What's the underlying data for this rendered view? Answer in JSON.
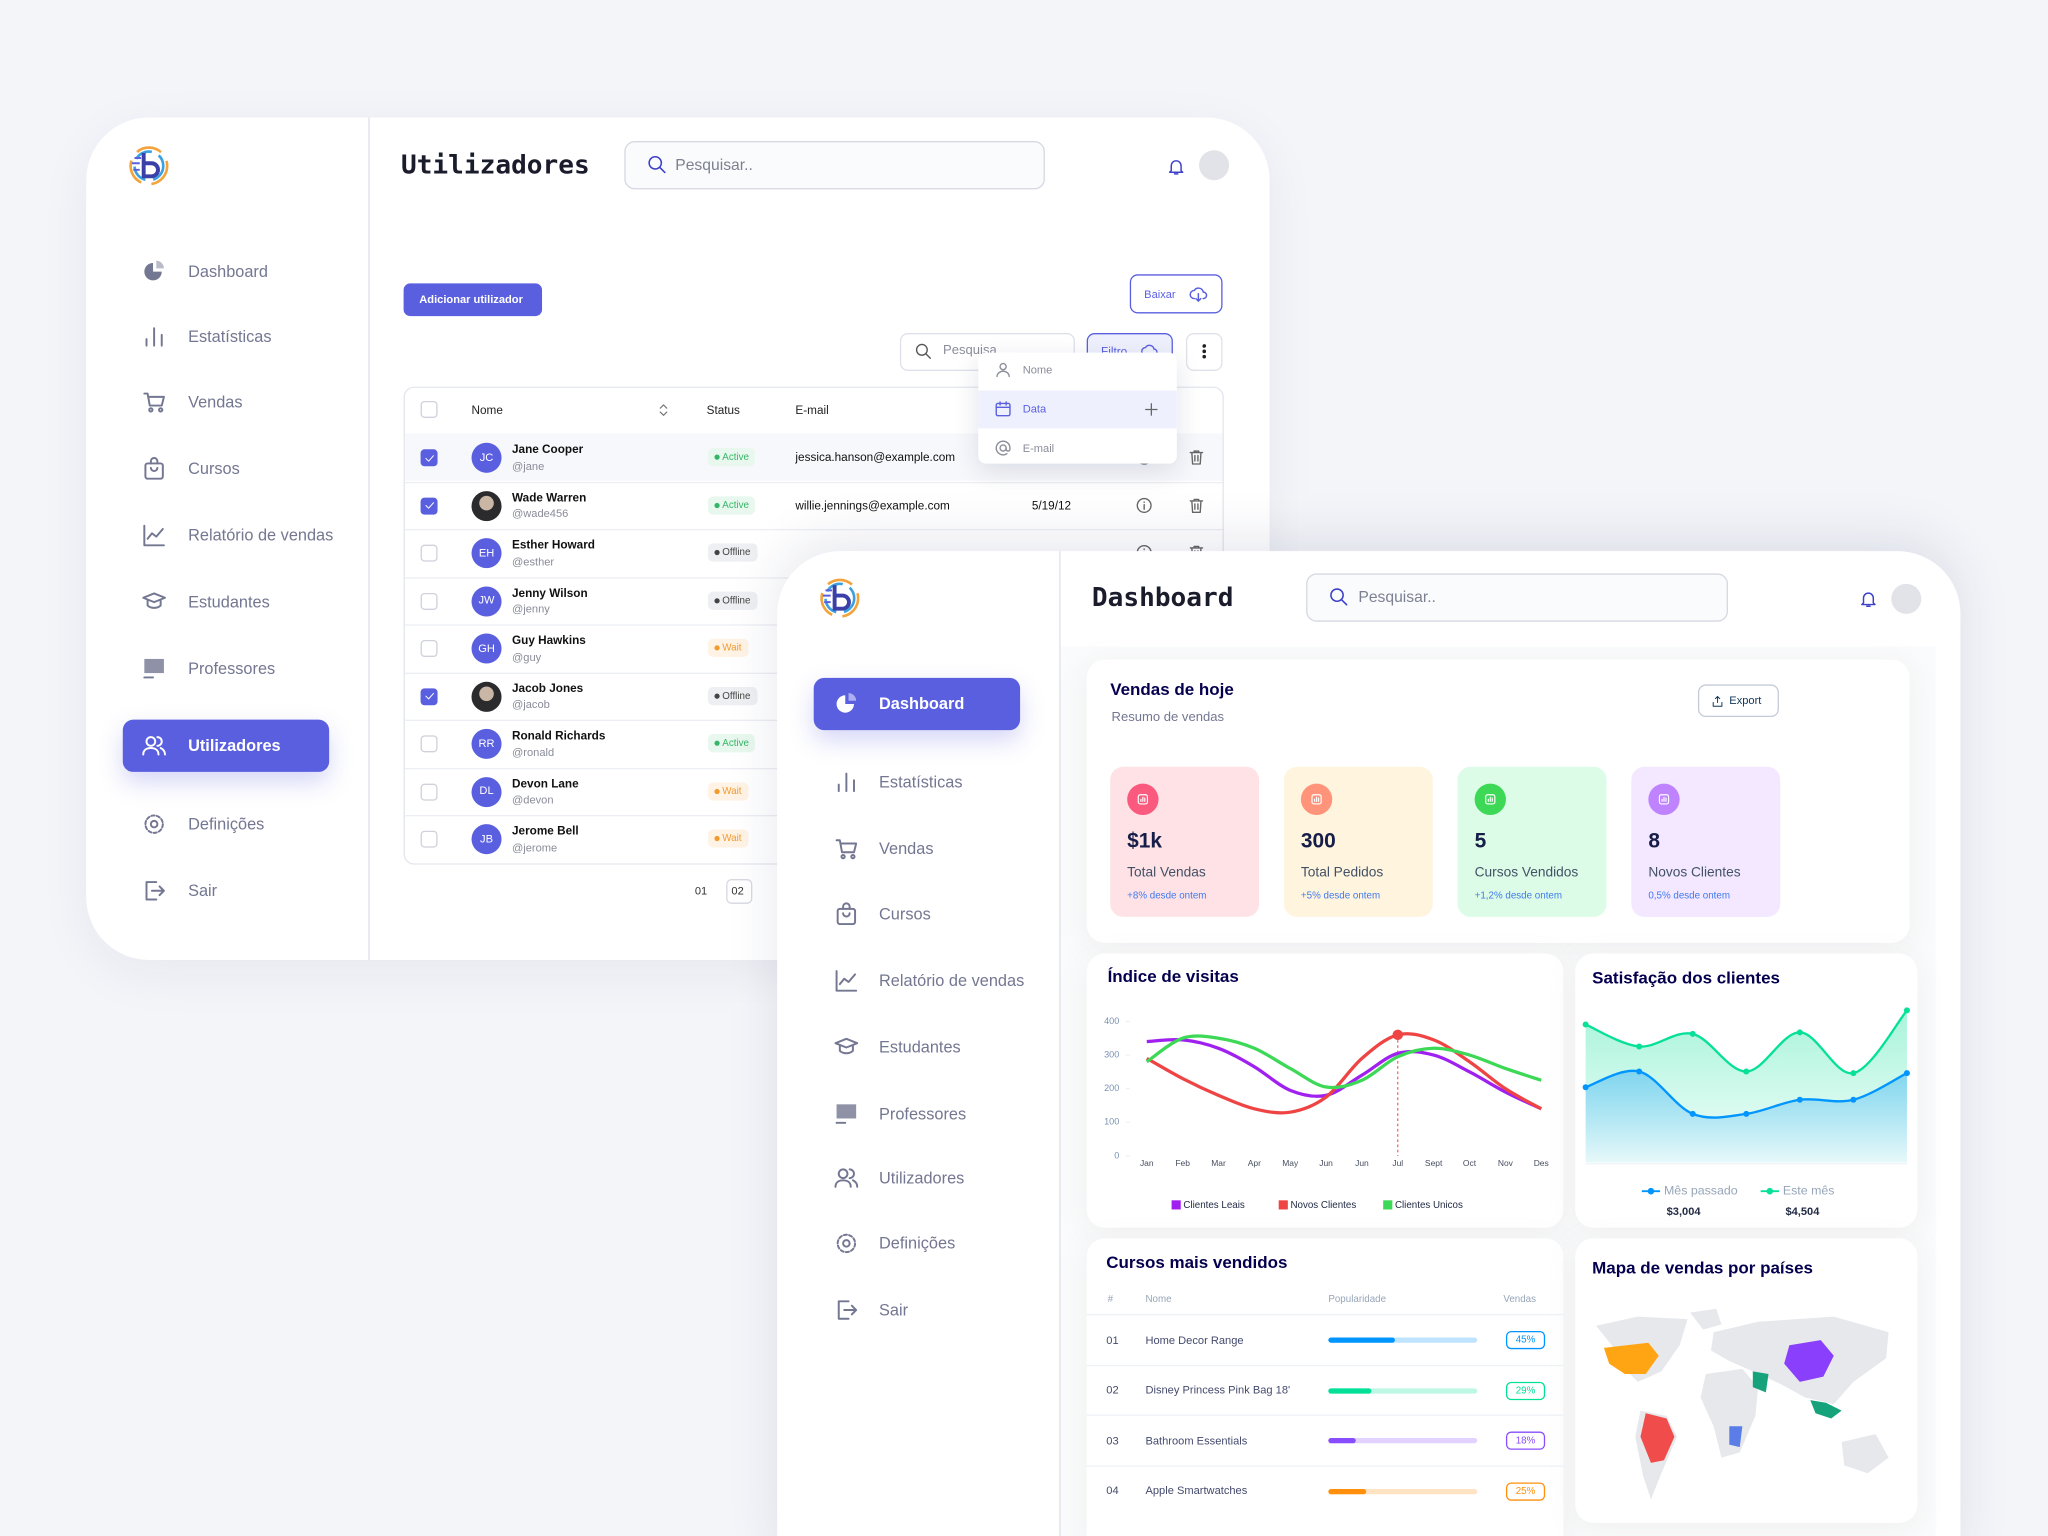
{
  "users_screen": {
    "title": "Utilizadores",
    "search": "Pesquisar..",
    "menu": [
      "Dashboard",
      "Estatísticas",
      "Vendas",
      "Cursos",
      "Relatório de vendas",
      "Estudantes",
      "Professores",
      "Utilizadores",
      "Definições",
      "Sair"
    ],
    "add_button": "Adicionar utilizador",
    "download_button": "Baixar",
    "table_search": "Pesquisa",
    "filter_button": "Filtro",
    "filter_options": [
      "Nome",
      "Data",
      "E-mail"
    ],
    "columns": [
      "Nome",
      "Status",
      "E-mail"
    ],
    "rows": [
      {
        "name": "Jane Cooper",
        "handle": "@jane",
        "initials": "JC",
        "status": "Active",
        "email": "jessica.hanson@example.com",
        "selected": true
      },
      {
        "name": "Wade Warren",
        "handle": "@wade456",
        "status": "Active",
        "email": "willie.jennings@example.com",
        "date": "5/19/12",
        "selected": true
      },
      {
        "name": "Esther Howard",
        "handle": "@esther",
        "initials": "EH",
        "status": "Offline"
      },
      {
        "name": "Jenny Wilson",
        "handle": "@jenny",
        "initials": "JW",
        "status": "Offline"
      },
      {
        "name": "Guy Hawkins",
        "handle": "@guy",
        "initials": "GH",
        "status": "Wait"
      },
      {
        "name": "Jacob Jones",
        "handle": "@jacob",
        "status": "Offline",
        "selected": true
      },
      {
        "name": "Ronald Richards",
        "handle": "@ronald",
        "initials": "RR",
        "status": "Active"
      },
      {
        "name": "Devon Lane",
        "handle": "@devon",
        "initials": "DL",
        "status": "Wait"
      },
      {
        "name": "Jerome Bell",
        "handle": "@jerome",
        "initials": "JB",
        "status": "Wait"
      }
    ],
    "pages": [
      "01",
      "02"
    ]
  },
  "dashboard_screen": {
    "title": "Dashboard",
    "search": "Pesquisar..",
    "menu": [
      "Dashboard",
      "Estatísticas",
      "Vendas",
      "Cursos",
      "Relatório de vendas",
      "Estudantes",
      "Professores",
      "Utilizadores",
      "Definições",
      "Sair"
    ],
    "sales_title": "Vendas de hoje",
    "sales_subtitle": "Resumo de vendas",
    "export_button": "Export",
    "stats": [
      {
        "value": "$1k",
        "label": "Total Vendas",
        "change": "+8% desde ontem"
      },
      {
        "value": "300",
        "label": "Total Pedidos",
        "change": "+5% desde ontem"
      },
      {
        "value": "5",
        "label": "Cursos Vendidos",
        "change": "+1,2% desde ontem"
      },
      {
        "value": "8",
        "label": "Novos Clientes",
        "change": "0,5% desde ontem"
      }
    ],
    "top_courses": {
      "title": "Cursos mais vendidos",
      "columns": [
        "#",
        "Nome",
        "Popularidade",
        "Vendas"
      ],
      "rows": [
        {
          "rank": "01",
          "name": "Home Decor Range",
          "color": "#0095ff"
        },
        {
          "rank": "02",
          "name": "Disney Princess Pink Bag 18'",
          "color": "#00e096"
        },
        {
          "rank": "03",
          "name": "Bathroom Essentials",
          "color": "#884dff"
        },
        {
          "rank": "04",
          "name": "Apple Smartwatches",
          "color": "#ff8f0d"
        }
      ],
      "values": [
        45,
        29,
        18,
        25
      ],
      "value_labels": [
        "45%",
        "29%",
        "18%",
        "25%"
      ]
    },
    "map_title": "Mapa de vendas por países"
  },
  "chart_data": [
    {
      "type": "line",
      "title": "Índice de visitas",
      "categories": [
        "Jan",
        "Feb",
        "Mar",
        "Apr",
        "May",
        "Jun",
        "Jun",
        "Jul",
        "Sept",
        "Oct",
        "Nov",
        "Des"
      ],
      "ylim": [
        0,
        400
      ],
      "yticks": [
        0,
        100,
        200,
        300,
        400
      ],
      "series": [
        {
          "name": "Clientes Leais",
          "color": "#a020f0",
          "values": [
            340,
            345,
            320,
            265,
            195,
            180,
            240,
            305,
            300,
            250,
            190,
            140
          ]
        },
        {
          "name": "Novos Clientes",
          "color": "#ef4444",
          "values": [
            290,
            230,
            180,
            140,
            130,
            175,
            290,
            360,
            345,
            280,
            200,
            140
          ]
        },
        {
          "name": "Clientes Unicos",
          "color": "#3cd856",
          "values": [
            280,
            350,
            350,
            320,
            260,
            205,
            225,
            295,
            320,
            300,
            260,
            225
          ]
        }
      ]
    },
    {
      "type": "area",
      "title": "Satisfação dos clientes",
      "ylim": [
        0,
        100
      ],
      "series": [
        {
          "name": "Mês passado",
          "color": "#0095ff",
          "values": [
            48,
            58,
            31,
            31,
            40,
            40,
            57
          ],
          "total": "$3,004"
        },
        {
          "name": "Este mês",
          "color": "#07e098",
          "values": [
            88,
            74,
            82,
            58,
            83,
            57,
            97
          ],
          "total": "$4,504"
        }
      ]
    }
  ]
}
